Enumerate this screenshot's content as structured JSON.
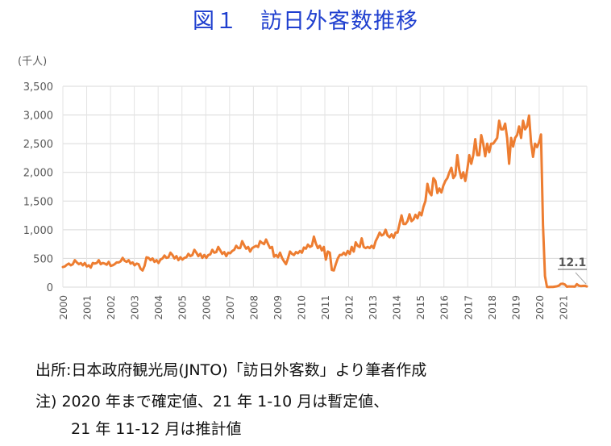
{
  "title": "図１　訪日外客数推移",
  "notes": {
    "source": "出所:日本政府観光局(JNTO)「訪日外客数」より筆者作成",
    "note1": "注) 2020 年まで確定値、21 年 1-10 月は暫定値、",
    "note2": "21 年 11-12 月は推計値"
  },
  "chart_data": {
    "type": "line",
    "title": "図１　訪日外客数推移",
    "ylabel": "(千人)",
    "xlabel": "",
    "ylim": [
      0,
      3500
    ],
    "yticks": [
      0,
      500,
      1000,
      1500,
      2000,
      2500,
      3000,
      3500
    ],
    "ytick_labels": [
      "0",
      "500",
      "1,000",
      "1,500",
      "2,000",
      "2,500",
      "3,000",
      "3,500"
    ],
    "xticks": [
      "2000",
      "2001",
      "2002",
      "2003",
      "2004",
      "2005",
      "2006",
      "2007",
      "2008",
      "2009",
      "2010",
      "2011",
      "2012",
      "2013",
      "2014",
      "2015",
      "2016",
      "2017",
      "2018",
      "2019",
      "2020",
      "2021"
    ],
    "grid": true,
    "color": "#ed7d31",
    "annotation": {
      "text": "12.1",
      "color": "#595959"
    },
    "series": [
      {
        "values": [
          350,
          360,
          390,
          410,
          380,
          400,
          470,
          430,
          400,
          420,
          380,
          420,
          360,
          380,
          340,
          420,
          410,
          420,
          470,
          400,
          420,
          410,
          390,
          440,
          370,
          380,
          400,
          430,
          430,
          450,
          510,
          460,
          440,
          470,
          410,
          430,
          380,
          410,
          400,
          320,
          290,
          370,
          520,
          510,
          470,
          500,
          440,
          470,
          420,
          480,
          500,
          550,
          510,
          520,
          600,
          560,
          500,
          540,
          470,
          520,
          480,
          510,
          520,
          580,
          540,
          560,
          650,
          600,
          540,
          580,
          510,
          560,
          510,
          560,
          570,
          650,
          600,
          610,
          700,
          640,
          580,
          610,
          540,
          600,
          590,
          630,
          650,
          720,
          680,
          680,
          800,
          730,
          670,
          700,
          620,
          680,
          700,
          720,
          700,
          800,
          770,
          750,
          830,
          750,
          680,
          700,
          530,
          560,
          520,
          600,
          510,
          450,
          400,
          500,
          620,
          580,
          560,
          610,
          590,
          630,
          600,
          690,
          670,
          740,
          700,
          720,
          880,
          760,
          680,
          720,
          640,
          700,
          480,
          620,
          600,
          300,
          290,
          400,
          500,
          560,
          560,
          600,
          560,
          630,
          580,
          700,
          620,
          780,
          720,
          700,
          850,
          700,
          680,
          700,
          680,
          720,
          680,
          800,
          870,
          950,
          900,
          920,
          1000,
          900,
          870,
          920,
          860,
          950,
          950,
          1100,
          1250,
          1100,
          1100,
          1150,
          1270,
          1150,
          1180,
          1260,
          1200,
          1300,
          1250,
          1400,
          1500,
          1800,
          1650,
          1600,
          1900,
          1850,
          1640,
          1720,
          1650,
          1770,
          1850,
          1900,
          2000,
          2080,
          1900,
          1950,
          2300,
          2040,
          1900,
          2000,
          1850,
          2050,
          2300,
          2150,
          2300,
          2580,
          2300,
          2300,
          2650,
          2500,
          2280,
          2500,
          2350,
          2500,
          2500,
          2550,
          2600,
          2900,
          2750,
          2750,
          2850,
          2600,
          2150,
          2600,
          2450,
          2600,
          2650,
          2800,
          2600,
          2900,
          2750,
          2800,
          2990,
          2520,
          2270,
          2500,
          2440,
          2520,
          2660,
          1085,
          193,
          3,
          2,
          3,
          4,
          9,
          14,
          27,
          57,
          59,
          46,
          7,
          12,
          11,
          10,
          8,
          51,
          26,
          18,
          21,
          23,
          12.1
        ]
      }
    ]
  }
}
